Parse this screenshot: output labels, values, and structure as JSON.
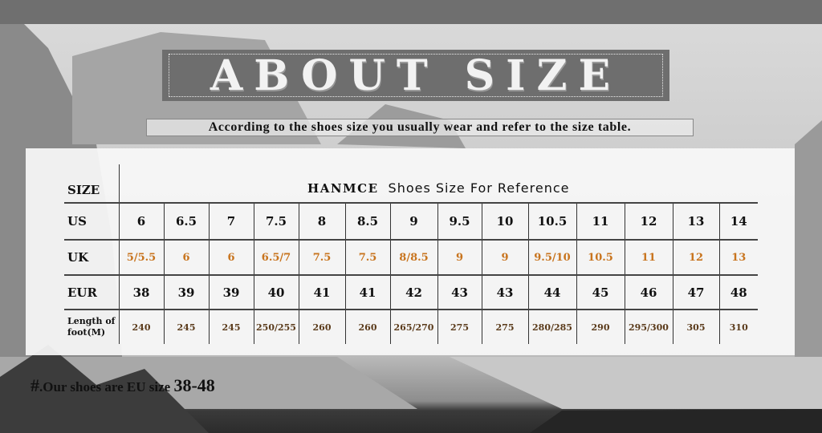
{
  "header": {
    "title": "ABOUT SIZE",
    "subtitle": "According to the shoes size you usually wear and refer to the size table."
  },
  "table": {
    "size_label": "SIZE",
    "brand": "HANMCE",
    "caption": "Shoes Size For Reference",
    "rows": [
      {
        "label": "US",
        "values": [
          "6",
          "6.5",
          "7",
          "7.5",
          "8",
          "8.5",
          "9",
          "9.5",
          "10",
          "10.5",
          "11",
          "12",
          "13",
          "14"
        ]
      },
      {
        "label": "UK",
        "values": [
          "5/5.5",
          "6",
          "6",
          "6.5/7",
          "7.5",
          "7.5",
          "8/8.5",
          "9",
          "9",
          "9.5/10",
          "10.5",
          "11",
          "12",
          "13"
        ]
      },
      {
        "label": "EUR",
        "values": [
          "38",
          "39",
          "39",
          "40",
          "41",
          "41",
          "42",
          "43",
          "43",
          "44",
          "45",
          "46",
          "47",
          "48"
        ]
      },
      {
        "label_line1": "Length of",
        "label_line2": "foot(M)",
        "values": [
          "240",
          "245",
          "245",
          "250/255",
          "260",
          "260",
          "265/270",
          "275",
          "275",
          "280/285",
          "290",
          "295/300",
          "305",
          "310"
        ]
      }
    ]
  },
  "note": {
    "prefix": "#",
    "text": ".Our shoes are EU size ",
    "range": "38-48"
  },
  "colors": {
    "uk_text": "#c8741e",
    "length_text": "#5a3a1a",
    "title_box": "#6e6e6e"
  }
}
